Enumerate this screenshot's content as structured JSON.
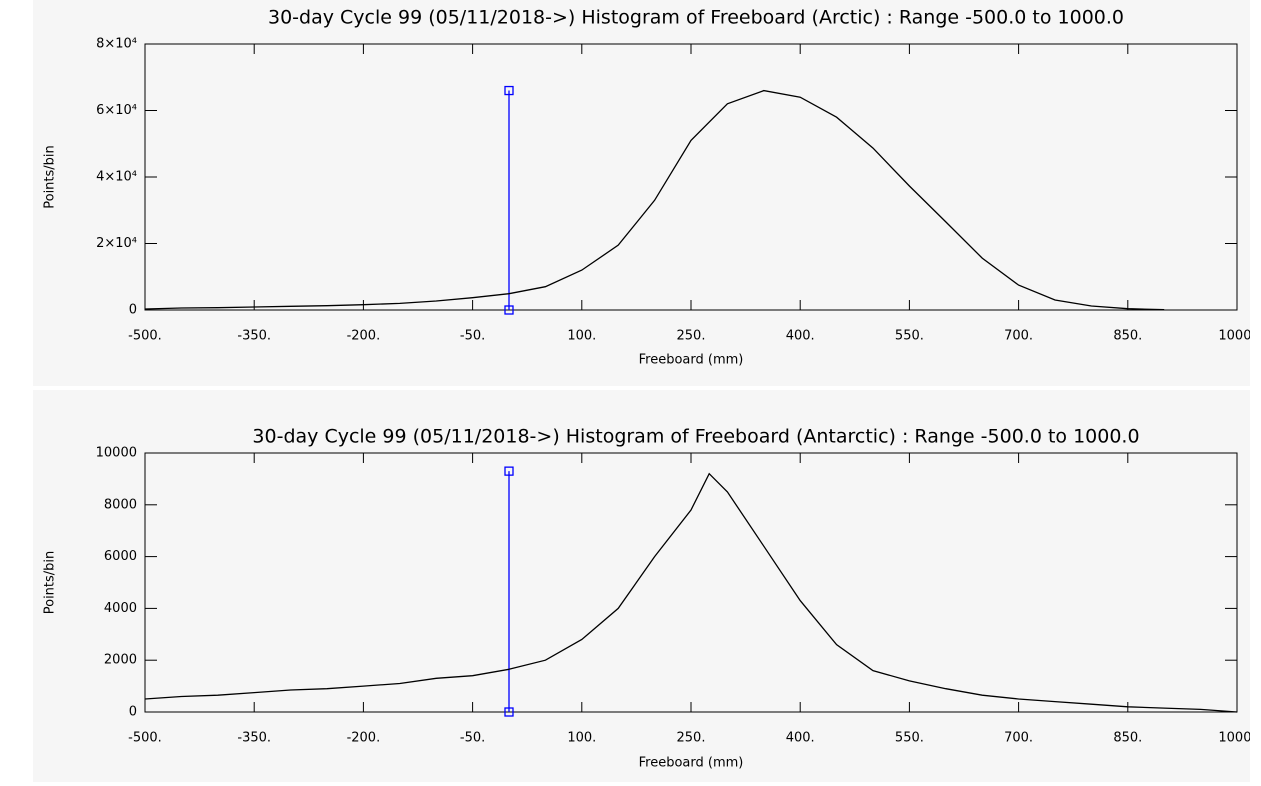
{
  "chart_data": [
    {
      "type": "line",
      "title": "30-day Cycle 99 (05/11/2018->) Histogram of Freeboard (Arctic) :  Range -500.0 to 1000.0",
      "x_label": "Freeboard (mm)",
      "y_label": "Points/bin",
      "x": [
        -500,
        -450,
        -400,
        -350,
        -300,
        -250,
        -200,
        -150,
        -100,
        -50,
        0,
        50,
        100,
        150,
        200,
        250,
        300,
        350,
        400,
        450,
        500,
        550,
        600,
        650,
        700,
        750,
        800,
        850,
        900
      ],
      "series": [
        {
          "name": "Arctic",
          "color": "#000000",
          "values": [
            300,
            600,
            700,
            900,
            1100,
            1300,
            1600,
            2000,
            2700,
            3700,
            4900,
            7000,
            12000,
            19500,
            33000,
            51000,
            62000,
            66000,
            64000,
            58000,
            48700,
            37300,
            26500,
            15600,
            7500,
            3000,
            1200,
            400,
            100
          ]
        }
      ],
      "marker": {
        "x": 0,
        "y": [
          0,
          66000
        ],
        "color": "#0000ff"
      },
      "xlim": [
        -500,
        1000
      ],
      "xticks": [
        {
          "value": -500,
          "label": "-500."
        },
        {
          "value": -350,
          "label": "-350."
        },
        {
          "value": -200,
          "label": "-200."
        },
        {
          "value": -50,
          "label": "-50."
        },
        {
          "value": 100,
          "label": "100."
        },
        {
          "value": 250,
          "label": "250."
        },
        {
          "value": 400,
          "label": "400."
        },
        {
          "value": 550,
          "label": "550."
        },
        {
          "value": 700,
          "label": "700."
        },
        {
          "value": 850,
          "label": "850."
        },
        {
          "value": 1000,
          "label": "1000."
        }
      ],
      "ylim": [
        0,
        80000
      ],
      "yticks": [
        0,
        {
          "value": 20000,
          "label": "2×10⁴"
        },
        {
          "value": 40000,
          "label": "4×10⁴"
        },
        {
          "value": 60000,
          "label": "6×10⁴"
        },
        {
          "value": 80000,
          "label": "8×10⁴"
        }
      ]
    },
    {
      "type": "line",
      "title": "30-day Cycle 99 (05/11/2018->) Histogram of Freeboard (Antarctic) :  Range -500.0 to 1000.0",
      "x_label": "Freeboard (mm)",
      "y_label": "Points/bin",
      "x": [
        -500,
        -450,
        -400,
        -350,
        -300,
        -250,
        -200,
        -150,
        -100,
        -50,
        0,
        50,
        100,
        150,
        200,
        250,
        275,
        300,
        350,
        400,
        450,
        500,
        550,
        600,
        650,
        700,
        750,
        800,
        850,
        900,
        950,
        1000
      ],
      "series": [
        {
          "name": "Antarctic",
          "color": "#000000",
          "values": [
            500,
            600,
            650,
            750,
            850,
            900,
            1000,
            1100,
            1300,
            1400,
            1650,
            2000,
            2800,
            4000,
            6000,
            7800,
            9200,
            8500,
            6400,
            4300,
            2600,
            1600,
            1200,
            900,
            650,
            500,
            400,
            300,
            200,
            150,
            100,
            0
          ]
        }
      ],
      "marker": {
        "x": 0,
        "y": [
          0,
          9300
        ],
        "color": "#0000ff"
      },
      "xlim": [
        -500,
        1000
      ],
      "xticks": [
        {
          "value": -500,
          "label": "-500."
        },
        {
          "value": -350,
          "label": "-350."
        },
        {
          "value": -200,
          "label": "-200."
        },
        {
          "value": -50,
          "label": "-50."
        },
        {
          "value": 100,
          "label": "100."
        },
        {
          "value": 250,
          "label": "250."
        },
        {
          "value": 400,
          "label": "400."
        },
        {
          "value": 550,
          "label": "550."
        },
        {
          "value": 700,
          "label": "700."
        },
        {
          "value": 850,
          "label": "850."
        },
        {
          "value": 1000,
          "label": "1000."
        }
      ],
      "ylim": [
        0,
        10000
      ],
      "yticks": [
        0,
        2000,
        4000,
        6000,
        8000,
        10000
      ]
    }
  ]
}
